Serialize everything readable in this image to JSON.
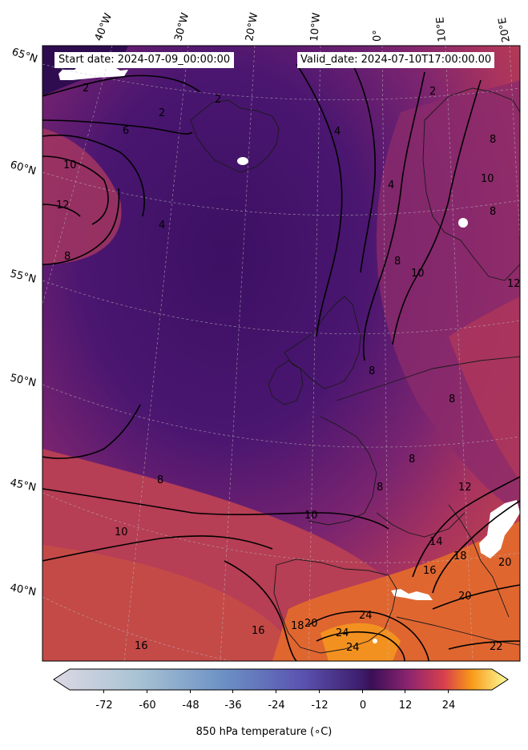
{
  "header": {
    "start_date": "Start date: 2024-07-09_00:00:00",
    "valid_date": "Valid_date: 2024-07-10T17:00:00.00"
  },
  "map": {
    "projection": "conic",
    "region": "North Atlantic / Western Europe",
    "field": "850 hPa temperature",
    "gridlines": true,
    "lon_labels": [
      "40°W",
      "30°W",
      "20°W",
      "10°W",
      "0°",
      "10°E",
      "20°E"
    ],
    "lat_labels": [
      "65°N",
      "60°N",
      "55°N",
      "50°N",
      "45°N",
      "40°N"
    ],
    "contour_labels": [
      "2",
      "2",
      "2",
      "2",
      "4",
      "4",
      "4",
      "6",
      "8",
      "8",
      "8",
      "8",
      "8",
      "8",
      "8",
      "8",
      "8",
      "10",
      "10",
      "10",
      "10",
      "10",
      "12",
      "12",
      "12",
      "14",
      "16",
      "16",
      "16",
      "18",
      "18",
      "20",
      "20",
      "20",
      "22",
      "24",
      "24",
      "24"
    ],
    "colormap": "inferno-like",
    "colors": {
      "cold": "#3e1168",
      "mid": "#8a2a6a",
      "warm": "#c8434f",
      "hot": "#f07a20",
      "missing": "#ffffff"
    }
  },
  "colorbar": {
    "label": "850 hPa temperature (∘C)",
    "ticks": [
      "-72",
      "-60",
      "-48",
      "-36",
      "-24",
      "-12",
      "0",
      "12",
      "24"
    ],
    "range": [
      -84,
      36
    ],
    "extend": "both"
  }
}
